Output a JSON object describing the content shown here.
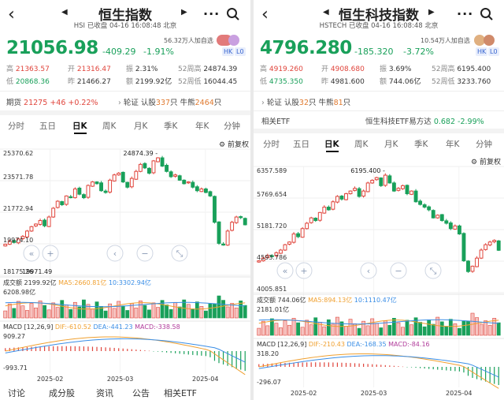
{
  "left": {
    "title": "恒生指数",
    "subtitle": "HSI  已收盘 04-16 16:08:48 北京",
    "price": "21056.98",
    "change": "-409.29",
    "change_pct": "-1.91%",
    "followers": "56.32万人加自选",
    "badge_hk": "HK",
    "badge_l0": "L0",
    "stats": [
      {
        "k": "高",
        "v": "21363.57",
        "c": "red"
      },
      {
        "k": "开",
        "v": "21316.47",
        "c": "red"
      },
      {
        "k": "振",
        "v": "2.31%",
        "c": ""
      },
      {
        "k": "52周高",
        "v": "24874.39",
        "c": ""
      },
      {
        "k": "低",
        "v": "20868.36",
        "c": "green"
      },
      {
        "k": "昨",
        "v": "21466.27",
        "c": ""
      },
      {
        "k": "额",
        "v": "2199.92亿",
        "c": ""
      },
      {
        "k": "52周低",
        "v": "16044.45",
        "c": ""
      }
    ],
    "futures_label": "期货",
    "futures_value": "21275",
    "futures_chg": "+46",
    "futures_pct": "+0.22%",
    "turbine": "轮证",
    "call_label": "认股",
    "call_count": "337",
    "call_unit": "只",
    "bull_label": "牛熊",
    "bull_count": "2464",
    "bull_unit": "只",
    "tabs": [
      "分时",
      "五日",
      "日K",
      "周K",
      "月K",
      "季K",
      "年K",
      "分钟"
    ],
    "active_tab": "日K",
    "restore": "前复权",
    "y_ticks": [
      "25370.62",
      "23571.78",
      "21772.94",
      "19974.10",
      "18175.26"
    ],
    "peak_label": "24874.39",
    "low_label": "19971.49",
    "vol_label": "成交额",
    "vol_value": "2199.92亿",
    "ma5": "MA5:2660.81亿",
    "ma10": "10:3302.94亿",
    "vol_axis": "6208.98亿",
    "macd_label": "MACD",
    "macd_params": "[12,26,9]",
    "dif": "DIF:-610.52",
    "dea": "DEA:-441.23",
    "macd_val": "MACD:-338.58",
    "macd_top": "909.27",
    "macd_bot": "-993.71",
    "dates": [
      "2025-02",
      "2025-03",
      "2025-04"
    ],
    "bottom_tabs": [
      "讨论",
      "成分股",
      "资讯",
      "公告",
      "相关ETF"
    ]
  },
  "right": {
    "title": "恒生科技指数",
    "subtitle": "HSTECH  已收盘 04-16 16:08:48 北京",
    "price": "4796.280",
    "change": "-185.320",
    "change_pct": "-3.72%",
    "followers": "10.54万人加自选",
    "badge_hk": "HK",
    "badge_l0": "L0",
    "stats": [
      {
        "k": "高",
        "v": "4919.260",
        "c": "red"
      },
      {
        "k": "开",
        "v": "4908.680",
        "c": "red"
      },
      {
        "k": "振",
        "v": "3.69%",
        "c": ""
      },
      {
        "k": "52周高",
        "v": "6195.400",
        "c": ""
      },
      {
        "k": "低",
        "v": "4735.350",
        "c": "green"
      },
      {
        "k": "昨",
        "v": "4981.600",
        "c": ""
      },
      {
        "k": "额",
        "v": "744.06亿",
        "c": ""
      },
      {
        "k": "52周低",
        "v": "3233.760",
        "c": ""
      }
    ],
    "turbine": "轮证",
    "call_label": "认股",
    "call_count": "32",
    "call_unit": "只",
    "bull_label": "牛熊",
    "bull_count": "81",
    "bull_unit": "只",
    "etf_label": "相关ETF",
    "etf_name": "恒生科技ETF易方达",
    "etf_price": "0.682",
    "etf_pct": "-2.99%",
    "tabs": [
      "分时",
      "五日",
      "日K",
      "周K",
      "月K",
      "季K",
      "年K",
      "分钟"
    ],
    "active_tab": "日K",
    "restore": "前复权",
    "y_ticks": [
      "6357.589",
      "5769.654",
      "5181.720",
      "4593.786",
      "4005.851"
    ],
    "peak_label": "6195.400",
    "vol_label": "成交额",
    "vol_value": "744.06亿",
    "ma5": "MA5:894.13亿",
    "ma10": "10:1110.47亿",
    "vol_axis": "2181.01亿",
    "macd_label": "MACD",
    "macd_params": "[12,26,9]",
    "dif": "DIF:-210.43",
    "dea": "DEA:-168.35",
    "macd_val": "MACD:-84.16",
    "macd_top": "318.20",
    "macd_bot": "-296.07",
    "dates": [
      "2025-02",
      "2025-03",
      "2025-04"
    ]
  },
  "colors": {
    "up": "#e0453c",
    "down": "#19a05a",
    "ma5": "#f0a030",
    "ma10": "#3a8ee6",
    "accent": "#3a66d0"
  },
  "chart_data": [
    {
      "type": "candlestick",
      "title": "恒生指数 日K",
      "y_range": [
        18175.26,
        25370.62
      ],
      "closes": [
        19950,
        20120,
        20050,
        20250,
        20400,
        20700,
        20950,
        21100,
        21300,
        21000,
        21500,
        22000,
        22400,
        22200,
        22700,
        22600,
        23100,
        22800,
        22600,
        23300,
        23500,
        23400,
        23000,
        22900,
        23600,
        23900,
        24000,
        23500,
        23200,
        23700,
        24100,
        24500,
        24300,
        24000,
        24700,
        24874,
        24400,
        24100,
        23800,
        23900,
        23600,
        23400,
        23500,
        23200,
        23000,
        23100,
        22900,
        22700,
        21200,
        20000,
        19900,
        20700,
        21200,
        21500,
        21466,
        21057
      ],
      "events": [
        "24874.39 high",
        "19971.49 low"
      ]
    },
    {
      "type": "candlestick",
      "title": "恒生科技指数 日K",
      "y_range": [
        4005.851,
        6357.589
      ],
      "closes": [
        4600,
        4650,
        4700,
        4690,
        4750,
        4800,
        4900,
        4950,
        5100,
        5050,
        5200,
        5300,
        5400,
        5350,
        5500,
        5600,
        5550,
        5700,
        5800,
        5750,
        5850,
        5900,
        5950,
        5800,
        5900,
        6050,
        6100,
        6150,
        6000,
        6195,
        6050,
        5900,
        5950,
        6000,
        5850,
        5900,
        5700,
        5650,
        5600,
        5550,
        5400,
        5450,
        5350,
        5300,
        5200,
        5250,
        5100,
        4600,
        4400,
        4500,
        4650,
        4800,
        4900,
        4950,
        4981,
        4796
      ],
      "events": [
        "6195.400 high"
      ]
    }
  ]
}
